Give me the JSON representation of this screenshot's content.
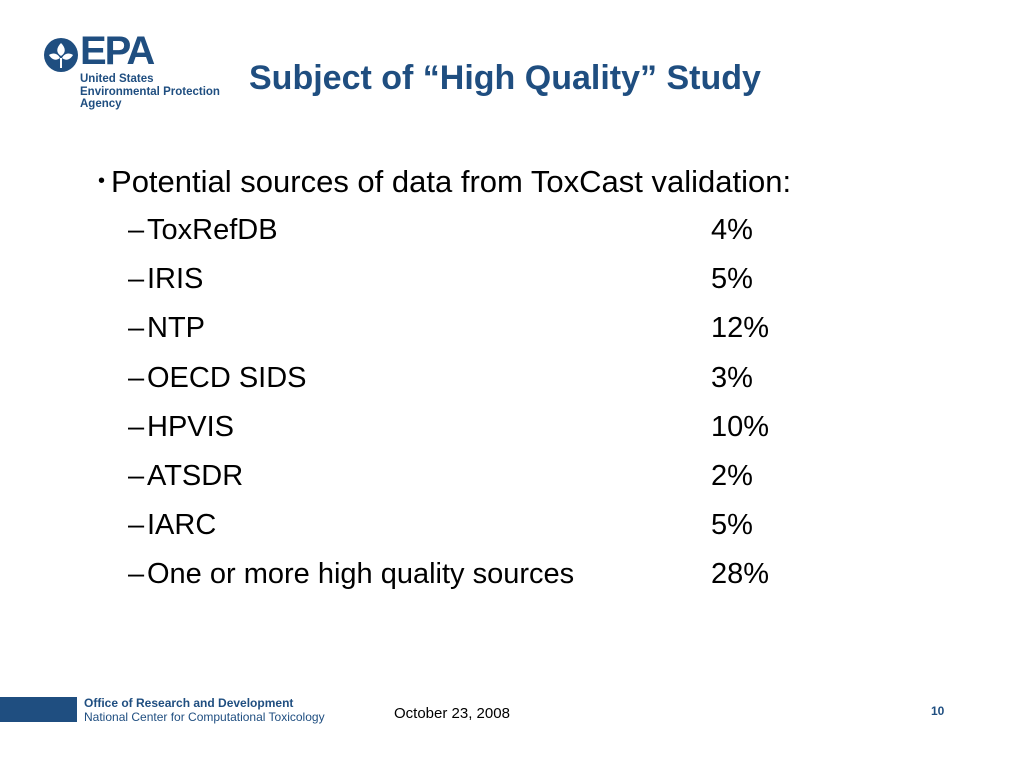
{
  "logo": {
    "word": "EPA",
    "sub_lines": [
      "United States",
      "Environmental Protection",
      "Agency"
    ],
    "color": "#1f4e80"
  },
  "slide": {
    "title": "Subject of “High Quality” Study",
    "bullet_char": "•",
    "bullet": "Potential sources of data from ToxCast validation:",
    "dash_char": "–",
    "items": [
      {
        "label": "ToxRefDB",
        "value": "4%"
      },
      {
        "label": "IRIS",
        "value": "5%"
      },
      {
        "label": "NTP",
        "value": "12%"
      },
      {
        "label": "OECD SIDS",
        "value": "3%"
      },
      {
        "label": "HPVIS",
        "value": "10%"
      },
      {
        "label": "ATSDR",
        "value": "2%"
      },
      {
        "label": "IARC",
        "value": "5%"
      },
      {
        "label": "One or more high quality sources",
        "value": "28%"
      }
    ]
  },
  "footer": {
    "office": "Office of Research and Development",
    "center": "National Center for Computational Toxicology",
    "date": "October 23, 2008",
    "page": "10",
    "accent": "#1f4e80"
  }
}
